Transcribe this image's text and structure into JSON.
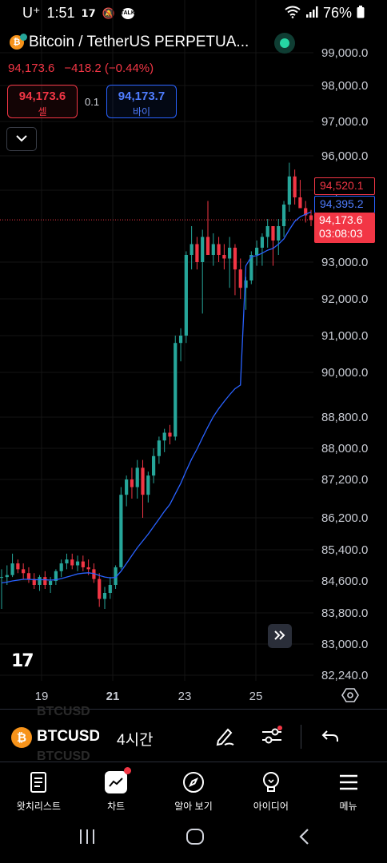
{
  "status": {
    "carrier": "U⁺",
    "time": "1:51",
    "battery": "76%",
    "icons": [
      "tradingview-icon",
      "bell-off-icon",
      "talk-icon",
      "wifi-icon",
      "signal-icon",
      "battery-icon"
    ],
    "talk_label": "TALK"
  },
  "header": {
    "symbol_title": "Bitcoin / TetherUS PERPETUA...",
    "coin_letter": "₿",
    "last_price": "94,173.6",
    "change": "−418.2 (−0.44%)",
    "sell_price": "94,173.6",
    "sell_label": "셀",
    "spread": "0.1",
    "buy_price": "94,173.7",
    "buy_label": "바이",
    "collapse_icon": "chevron-down-icon"
  },
  "chart_data": {
    "type": "candlestick",
    "title": "",
    "xlabel": "",
    "ylabel": "",
    "y_ticks": [
      "99,000.0",
      "98,000.0",
      "97,000.0",
      "96,000.0",
      "95,000.0",
      "93,000.0",
      "92,000.0",
      "91,000.0",
      "90,000.0",
      "88,800.0",
      "88,000.0",
      "87,200.0",
      "86,200.0",
      "85,400.0",
      "84,600.0",
      "83,800.0",
      "83,000.0",
      "82,240.0"
    ],
    "x_ticks": [
      "19",
      "21",
      "23",
      "25"
    ],
    "x_ticks_bold": [
      "21"
    ],
    "colors": {
      "up": "#26a69a",
      "down": "#f23645",
      "ma": "#2962ff"
    },
    "price_tags": {
      "high": "94,520.1",
      "ma": "94,395.2",
      "last": "94,173.6",
      "countdown": "03:08:03"
    },
    "candles": [
      [
        84700,
        84900,
        83900,
        84700
      ],
      [
        84700,
        85000,
        84500,
        84750
      ],
      [
        84750,
        85300,
        84700,
        85050
      ],
      [
        85050,
        85150,
        84800,
        84900
      ],
      [
        84900,
        85050,
        84650,
        84800
      ],
      [
        84800,
        84950,
        84550,
        84650
      ],
      [
        84650,
        84800,
        84400,
        84500
      ],
      [
        84500,
        84750,
        84350,
        84700
      ],
      [
        84700,
        84850,
        84400,
        84500
      ],
      [
        84500,
        84700,
        84300,
        84600
      ],
      [
        84600,
        84900,
        84500,
        84850
      ],
      [
        84850,
        85150,
        84700,
        85050
      ],
      [
        85050,
        85300,
        84900,
        85150
      ],
      [
        85150,
        85300,
        84900,
        85000
      ],
      [
        85000,
        85250,
        84850,
        85100
      ],
      [
        85100,
        85250,
        84850,
        84950
      ],
      [
        84950,
        85150,
        84750,
        84900
      ],
      [
        84900,
        85050,
        84550,
        84650
      ],
      [
        84650,
        84800,
        83950,
        84150
      ],
      [
        84150,
        84450,
        83900,
        84300
      ],
      [
        84300,
        84700,
        84150,
        84500
      ],
      [
        84500,
        85000,
        84400,
        84950
      ],
      [
        84950,
        87000,
        84900,
        86800
      ],
      [
        86800,
        87300,
        86500,
        87200
      ],
      [
        87200,
        87500,
        86700,
        87000
      ],
      [
        87000,
        87700,
        86700,
        87500
      ],
      [
        87500,
        87700,
        86200,
        86800
      ],
      [
        86800,
        87400,
        86600,
        87300
      ],
      [
        87300,
        88000,
        87100,
        87800
      ],
      [
        87800,
        88300,
        87600,
        88200
      ],
      [
        88200,
        88500,
        87900,
        88400
      ],
      [
        88400,
        88600,
        88100,
        88300
      ],
      [
        88300,
        91000,
        88200,
        90800
      ],
      [
        90800,
        91200,
        90300,
        91000
      ],
      [
        91000,
        93300,
        90800,
        93200
      ],
      [
        93200,
        94000,
        92800,
        93500
      ],
      [
        93500,
        93700,
        92800,
        93000
      ],
      [
        93000,
        93900,
        91600,
        93700
      ],
      [
        93700,
        94700,
        93200,
        93200
      ],
      [
        93200,
        93800,
        92900,
        93500
      ],
      [
        93500,
        93700,
        93000,
        93200
      ],
      [
        93200,
        93500,
        92800,
        93100
      ],
      [
        93100,
        93700,
        92300,
        93400
      ],
      [
        93400,
        93500,
        92100,
        92800
      ],
      [
        92800,
        93100,
        92000,
        92300
      ],
      [
        92300,
        92600,
        91700,
        92500
      ],
      [
        92500,
        93300,
        92400,
        93200
      ],
      [
        93200,
        93600,
        92900,
        93400
      ],
      [
        93400,
        93800,
        92900,
        93700
      ],
      [
        93700,
        94200,
        93400,
        94000
      ],
      [
        94000,
        93900,
        92900,
        93600
      ],
      [
        93600,
        94200,
        93200,
        94000
      ],
      [
        94000,
        94700,
        93700,
        94600
      ],
      [
        94600,
        95800,
        94400,
        95400
      ],
      [
        95400,
        95600,
        94600,
        94800
      ],
      [
        94800,
        95300,
        94500,
        94500
      ],
      [
        94500,
        94700,
        94100,
        94300
      ],
      [
        94300,
        94450,
        94000,
        94174
      ]
    ],
    "ma": [
      84550,
      84570,
      84600,
      84620,
      84640,
      84640,
      84630,
      84630,
      84630,
      84620,
      84630,
      84660,
      84700,
      84740,
      84780,
      84800,
      84810,
      84790,
      84740,
      84700,
      84680,
      84690,
      84850,
      85050,
      85250,
      85450,
      85620,
      85790,
      85980,
      86170,
      86370,
      86550,
      86830,
      87100,
      87420,
      87720,
      87980,
      88270,
      88550,
      88810,
      89030,
      89220,
      89400,
      89560,
      89660,
      92900,
      93150,
      93180,
      93250,
      93330,
      93380,
      93500,
      93650,
      93900,
      94130,
      94260,
      94330,
      94395
    ]
  },
  "chart_overlay": {
    "logo_text": "17",
    "scroll_icon": "chevrons-right-icon",
    "settings_icon": "hexagon-settings-icon"
  },
  "toolbar": {
    "ghost_top": "BTCUSD",
    "ghost_bottom": "BTCUSD",
    "coin_letter": "₿",
    "symbol": "BTCUSD",
    "interval": "4시간",
    "icons": [
      "drawing-pen-icon",
      "indicator-sliders-icon",
      "undo-icon"
    ]
  },
  "bottom_nav": [
    {
      "label": "왓치리스트",
      "icon": "watchlist-icon"
    },
    {
      "label": "차트",
      "icon": "chart-icon"
    },
    {
      "label": "알아 보기",
      "icon": "compass-icon"
    },
    {
      "label": "아이디어",
      "icon": "lightbulb-icon"
    },
    {
      "label": "메뉴",
      "icon": "menu-icon"
    }
  ],
  "system_nav": [
    "recents-icon",
    "home-icon",
    "back-icon"
  ]
}
